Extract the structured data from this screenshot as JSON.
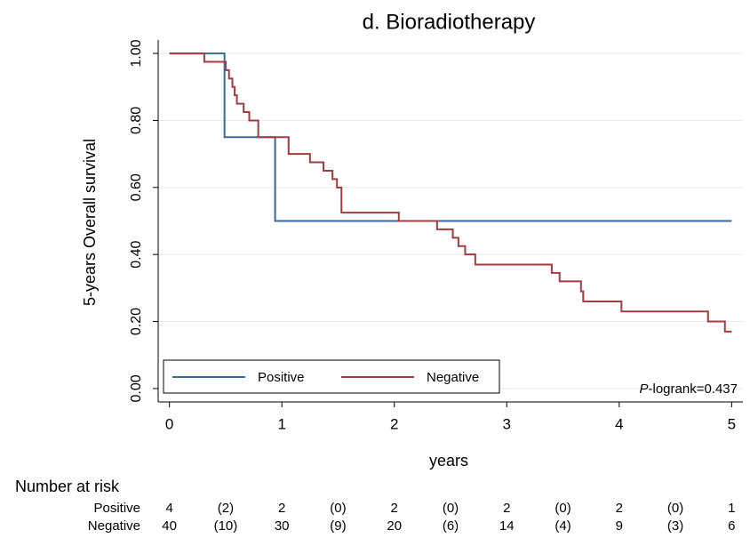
{
  "chart_data": {
    "type": "step",
    "title": "d. Bioradiotherapy",
    "x_label": "years",
    "y_label": "5-years Overall survival",
    "xlim": [
      -0.1,
      5.1
    ],
    "ylim": [
      -0.04,
      1.04
    ],
    "xticks": [
      0,
      1,
      2,
      3,
      4,
      5
    ],
    "yticks": [
      {
        "value": 0,
        "label": "0.00"
      },
      {
        "value": 0.2,
        "label": "0.20"
      },
      {
        "value": 0.4,
        "label": "0.40"
      },
      {
        "value": 0.6,
        "label": "0.60"
      },
      {
        "value": 0.8,
        "label": "0.80"
      },
      {
        "value": 1,
        "label": "1.00"
      }
    ],
    "grid": true,
    "legend": "bottom-left",
    "series": [
      {
        "name": "Positive",
        "color": "#3a6a96",
        "x": [
          0,
          0.49,
          0.94,
          5
        ],
        "values": [
          1,
          0.75,
          0.5,
          0.5
        ]
      },
      {
        "name": "Negative",
        "color": "#a33c40",
        "x": [
          0,
          0.31,
          0.5,
          0.53,
          0.56,
          0.58,
          0.6,
          0.66,
          0.71,
          0.79,
          1.06,
          1.25,
          1.37,
          1.45,
          1.49,
          1.53,
          2.04,
          2.38,
          2.52,
          2.57,
          2.63,
          2.72,
          3.4,
          3.47,
          3.66,
          3.68,
          4.02,
          4.79,
          4.94,
          5
        ],
        "values": [
          1,
          0.975,
          0.95,
          0.925,
          0.9,
          0.875,
          0.85,
          0.825,
          0.8,
          0.75,
          0.7,
          0.675,
          0.65,
          0.625,
          0.6,
          0.525,
          0.5,
          0.475,
          0.45,
          0.425,
          0.4,
          0.37,
          0.345,
          0.32,
          0.29,
          0.26,
          0.23,
          0.2,
          0.17,
          0.17
        ]
      }
    ],
    "annotation": {
      "italic": "P",
      "text": "-logrank=0.437"
    },
    "risk_table": {
      "title": "Number at risk",
      "times": [
        0,
        0.5,
        1,
        1.5,
        2,
        2.5,
        3,
        3.5,
        4,
        4.5,
        5
      ],
      "rows": [
        {
          "name": "Positive",
          "values": [
            "4",
            "(2)",
            "2",
            "(0)",
            "2",
            "(0)",
            "2",
            "(0)",
            "2",
            "(0)",
            "1"
          ]
        },
        {
          "name": "Negative",
          "values": [
            "40",
            "(10)",
            "30",
            "(9)",
            "20",
            "(6)",
            "14",
            "(4)",
            "9",
            "(3)",
            "6"
          ]
        }
      ]
    }
  }
}
